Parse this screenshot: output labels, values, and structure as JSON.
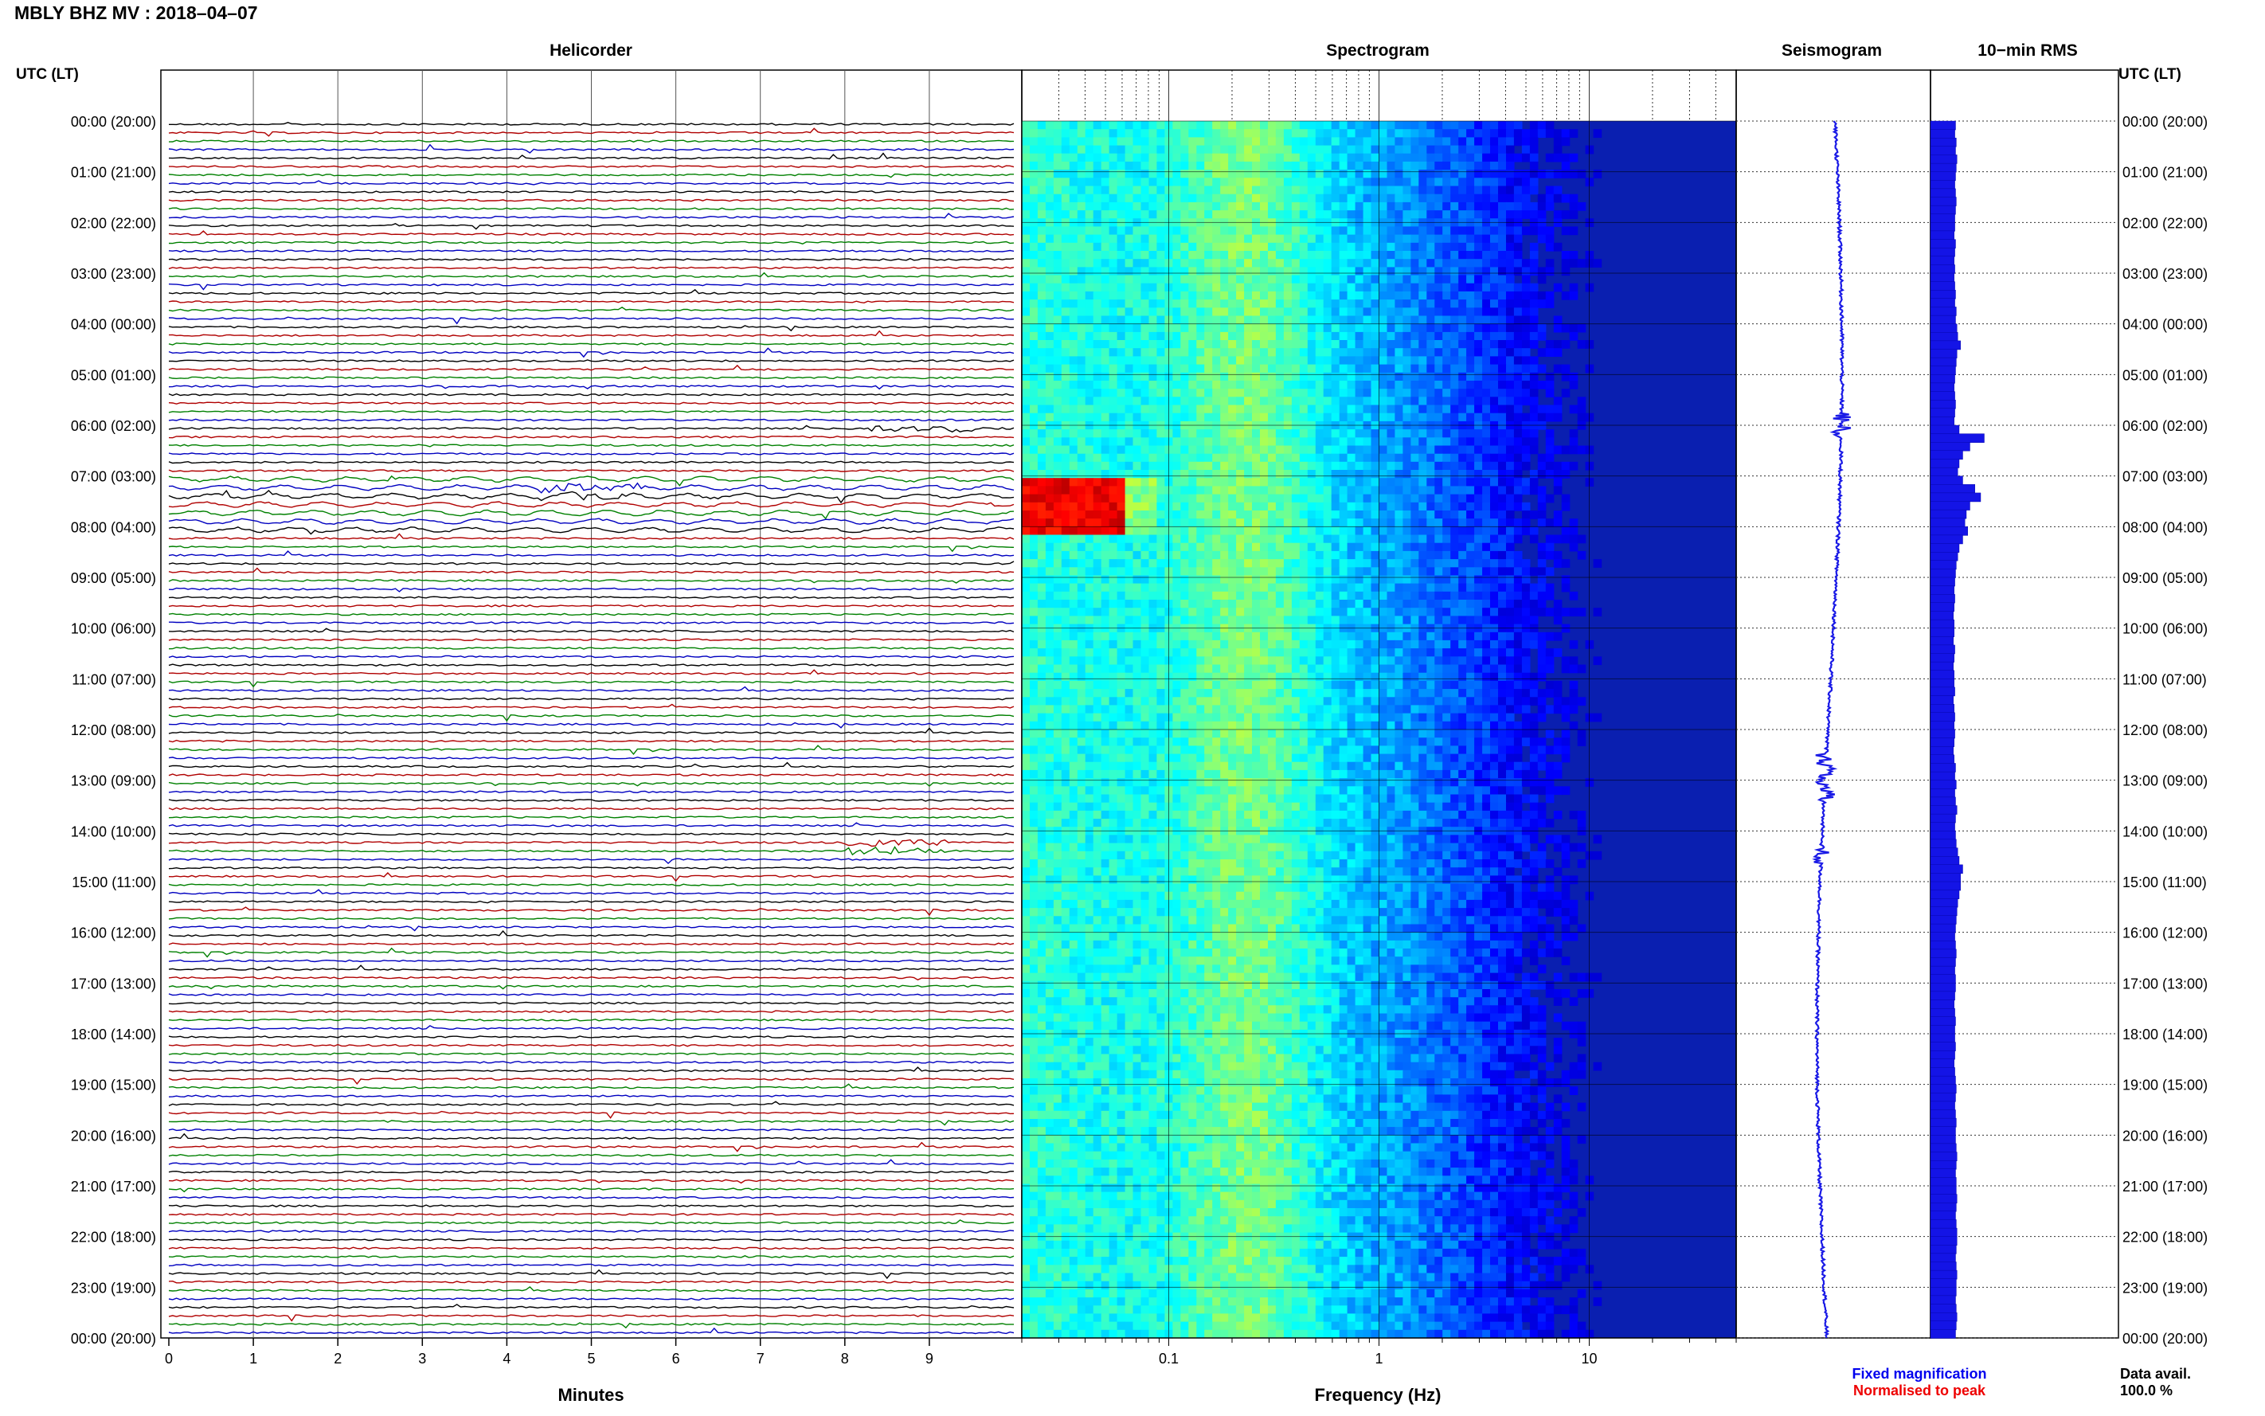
{
  "header": {
    "title": "MBLY BHZ MV : 2018–04–07",
    "tz_label_left": "UTC (LT)",
    "tz_label_right": "UTC (LT)"
  },
  "panels": {
    "helicorder": "Helicorder",
    "spectrogram": "Spectrogram",
    "seismogram": "Seismogram",
    "rms": "10−min RMS"
  },
  "time_labels": [
    "00:00 (20:00)",
    "01:00 (21:00)",
    "02:00 (22:00)",
    "03:00 (23:00)",
    "04:00 (00:00)",
    "05:00 (01:00)",
    "06:00 (02:00)",
    "07:00 (03:00)",
    "08:00 (04:00)",
    "09:00 (05:00)",
    "10:00 (06:00)",
    "11:00 (07:00)",
    "12:00 (08:00)",
    "13:00 (09:00)",
    "14:00 (10:00)",
    "15:00 (11:00)",
    "16:00 (12:00)",
    "17:00 (13:00)",
    "18:00 (14:00)",
    "19:00 (15:00)",
    "20:00 (16:00)",
    "21:00 (17:00)",
    "22:00 (18:00)",
    "23:00 (19:00)",
    "00:00 (20:00)"
  ],
  "helicorder_axis": {
    "ticks": [
      "0",
      "1",
      "2",
      "3",
      "4",
      "5",
      "6",
      "7",
      "8",
      "9"
    ],
    "label": "Minutes"
  },
  "spectrogram_axis": {
    "ticks": [
      "0.1",
      "1",
      "10"
    ],
    "label": "Frequency (Hz)"
  },
  "legend": {
    "fixed": "Fixed magnification",
    "normalised": "Normalised to peak",
    "fixed_color": "#0000ee",
    "normalised_color": "#ee0000"
  },
  "availability": {
    "label": "Data avail.",
    "value": "100.0 %"
  },
  "colors": {
    "trace_cycle": [
      "#000000",
      "#b00000",
      "#008000",
      "#0000c0"
    ],
    "rms_bar": "#1414e6",
    "seismogram": "#1a1ae6"
  },
  "chart_data": [
    {
      "type": "line",
      "name": "helicorder",
      "xlabel": "Minutes",
      "xlim": [
        0,
        10
      ],
      "rows": 144,
      "row_minutes": 10,
      "events": [
        {
          "hour": 6.0,
          "minute": 8.9,
          "note": "burst"
        },
        {
          "hour": 7.25,
          "minute": 5.0,
          "note": "long-period swell"
        },
        {
          "hour": 14.25,
          "minute": 8.6,
          "note": "burst"
        }
      ]
    },
    {
      "type": "heatmap",
      "name": "spectrogram",
      "xlabel": "Frequency (Hz)",
      "xscale": "log",
      "xlim": [
        0.02,
        50
      ],
      "ylim_hours": [
        0,
        24
      ],
      "hot_spots": [
        {
          "hour_from": 7.0,
          "hour_to": 8.0,
          "freq_from": 0.02,
          "freq_to": 0.06
        }
      ]
    },
    {
      "type": "bar",
      "name": "10-min RMS",
      "orientation": "horizontal",
      "bins_per_hour": 6,
      "rms_relative": [
        0.35,
        0.34,
        0.36,
        0.35,
        0.37,
        0.36,
        0.35,
        0.34,
        0.35,
        0.36,
        0.35,
        0.34,
        0.34,
        0.33,
        0.35,
        0.34,
        0.33,
        0.34,
        0.33,
        0.34,
        0.35,
        0.34,
        0.36,
        0.35,
        0.37,
        0.38,
        0.42,
        0.37,
        0.36,
        0.35,
        0.34,
        0.33,
        0.34,
        0.35,
        0.34,
        0.33,
        0.4,
        0.75,
        0.55,
        0.45,
        0.4,
        0.38,
        0.45,
        0.62,
        0.7,
        0.55,
        0.5,
        0.48,
        0.52,
        0.45,
        0.4,
        0.38,
        0.36,
        0.35,
        0.34,
        0.33,
        0.34,
        0.33,
        0.32,
        0.33,
        0.33,
        0.32,
        0.34,
        0.33,
        0.32,
        0.33,
        0.33,
        0.34,
        0.32,
        0.33,
        0.34,
        0.33,
        0.34,
        0.33,
        0.32,
        0.33,
        0.35,
        0.34,
        0.36,
        0.34,
        0.35,
        0.37,
        0.35,
        0.34,
        0.35,
        0.36,
        0.38,
        0.4,
        0.45,
        0.42,
        0.42,
        0.4,
        0.38,
        0.37,
        0.36,
        0.35,
        0.34,
        0.35,
        0.36,
        0.35,
        0.34,
        0.35,
        0.35,
        0.34,
        0.33,
        0.34,
        0.35,
        0.34,
        0.34,
        0.35,
        0.34,
        0.33,
        0.34,
        0.35,
        0.36,
        0.35,
        0.34,
        0.35,
        0.36,
        0.35,
        0.35,
        0.36,
        0.37,
        0.36,
        0.35,
        0.36,
        0.36,
        0.37,
        0.36,
        0.35,
        0.36,
        0.37,
        0.37,
        0.36,
        0.35,
        0.36,
        0.37,
        0.36,
        0.36,
        0.35,
        0.36,
        0.37,
        0.36,
        0.35
      ]
    }
  ]
}
